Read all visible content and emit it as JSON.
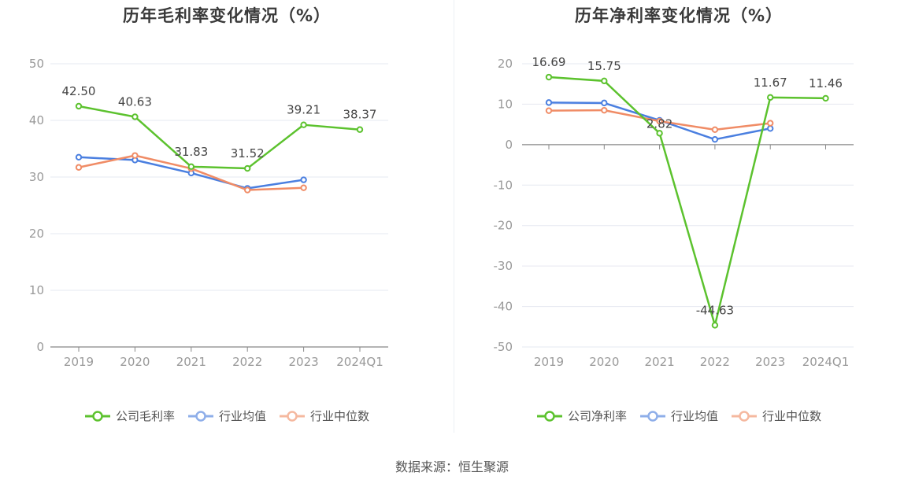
{
  "source_text": "数据来源：恒生聚源",
  "colors": {
    "company": "#5cc22e",
    "average": "#4a7fe0",
    "median": "#f08c66",
    "grid": "#e6e8f0",
    "axis": "#888888"
  },
  "chart_data": [
    {
      "type": "line",
      "title": "历年毛利率变化情况（%）",
      "categories": [
        "2019",
        "2020",
        "2021",
        "2022",
        "2023",
        "2024Q1"
      ],
      "ylim": [
        0,
        50
      ],
      "yticks": [
        0,
        10,
        20,
        30,
        40,
        50
      ],
      "ytick_labels": [
        "0",
        "10",
        "20",
        "30",
        "40",
        "50"
      ],
      "series": [
        {
          "name": "公司毛利率",
          "key": "company",
          "values": [
            42.5,
            40.63,
            31.83,
            31.52,
            39.21,
            38.37
          ],
          "labels": [
            "42.50",
            "40.63",
            "31.83",
            "31.52",
            "39.21",
            "38.37"
          ]
        },
        {
          "name": "行业均值",
          "key": "average",
          "values": [
            33.5,
            33.0,
            30.7,
            28.0,
            29.5,
            null
          ]
        },
        {
          "name": "行业中位数",
          "key": "median",
          "values": [
            31.7,
            33.8,
            31.5,
            27.7,
            28.1,
            null
          ]
        }
      ]
    },
    {
      "type": "line",
      "title": "历年净利率变化情况（%）",
      "categories": [
        "2019",
        "2020",
        "2021",
        "2022",
        "2023",
        "2024Q1"
      ],
      "ylim": [
        -50,
        20
      ],
      "yticks": [
        20,
        10,
        0,
        -10,
        -20,
        -30,
        -40,
        -50
      ],
      "ytick_labels": [
        "20",
        "10",
        "0",
        "-10",
        "-20",
        "-30",
        "-40",
        "-50"
      ],
      "series": [
        {
          "name": "公司净利率",
          "key": "company",
          "values": [
            16.69,
            15.75,
            2.82,
            -44.63,
            11.67,
            11.46
          ],
          "labels": [
            "16.69",
            "15.75",
            "2.82",
            "-44.63",
            "11.67",
            "11.46"
          ]
        },
        {
          "name": "行业均值",
          "key": "average",
          "values": [
            10.4,
            10.3,
            6.0,
            1.3,
            4.0,
            null
          ]
        },
        {
          "name": "行业中位数",
          "key": "median",
          "values": [
            8.4,
            8.5,
            5.8,
            3.7,
            5.3,
            null
          ]
        }
      ]
    }
  ]
}
